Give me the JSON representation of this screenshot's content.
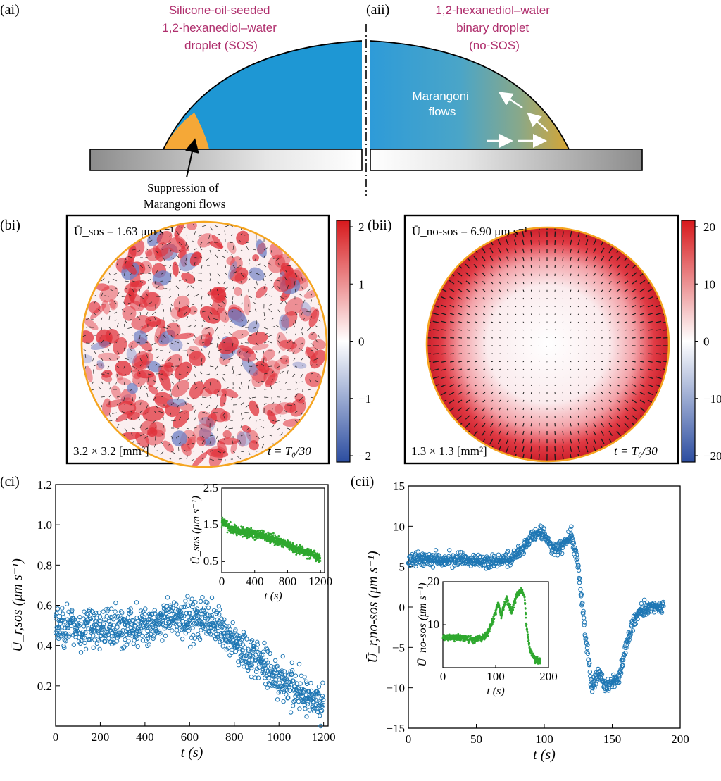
{
  "panel_a": {
    "label_ai": "(ai)",
    "label_aii": "(aii)",
    "sos_title": [
      "Silicone-oil-seeded",
      "1,2-hexanediol–water",
      "droplet (SOS)"
    ],
    "nosos_title": [
      "1,2-hexanediol–water",
      "binary droplet",
      "(no-SOS)"
    ],
    "marangoni_label": [
      "Marangoni",
      "flows"
    ],
    "suppression_label": [
      "Suppression of",
      "Marangoni flows"
    ]
  },
  "panel_b": {
    "label_bi": "(bi)",
    "label_bii": "(bii)",
    "sos_speed": "Ū_sos = 1.63 μm s⁻¹",
    "nosos_speed": "Ū_no-sos = 6.90 μm s⁻¹",
    "sos_scale": "3.2 × 3.2 [mm²]",
    "nosos_scale": "1.3 × 1.3 [mm²]",
    "time_label": "t = T₀/30",
    "colorbar_left_ticks": [
      "2",
      "1",
      "0",
      "−1",
      "−2"
    ],
    "colorbar_right_ticks": [
      "20",
      "10",
      "0",
      "−10",
      "−20"
    ]
  },
  "chart_data": [
    {
      "id": "ci",
      "type": "scatter",
      "label": "(ci)",
      "xlabel": "t (s)",
      "ylabel": "Ū_r,sos (μm s⁻¹)",
      "xlim": [
        0,
        1220
      ],
      "ylim": [
        0,
        1.2
      ],
      "xticks": [
        "0",
        "200",
        "400",
        "600",
        "800",
        "1000",
        "1200"
      ],
      "yticks": [
        "0.2",
        "0.4",
        "0.6",
        "0.8",
        "1.0",
        "1.2"
      ],
      "trend": {
        "x": [
          0,
          200,
          400,
          600,
          700,
          800,
          900,
          1000,
          1100,
          1200
        ],
        "y": [
          0.5,
          0.48,
          0.5,
          0.54,
          0.52,
          0.42,
          0.33,
          0.24,
          0.17,
          0.1
        ]
      },
      "inset": {
        "xlabel": "t (s)",
        "ylabel": "Ū_sos (μm s⁻¹)",
        "xlim": [
          0,
          1250
        ],
        "ylim": [
          0.2,
          2.5
        ],
        "xticks": [
          "0",
          "400",
          "800",
          "1200"
        ],
        "yticks": [
          "0.5",
          "1.5",
          "2.5"
        ],
        "trend": {
          "x": [
            0,
            100,
            300,
            500,
            700,
            900,
            1100,
            1200
          ],
          "y": [
            1.6,
            1.4,
            1.3,
            1.2,
            1.05,
            0.85,
            0.7,
            0.6
          ]
        }
      }
    },
    {
      "id": "cii",
      "type": "scatter",
      "label": "(cii)",
      "xlabel": "t (s)",
      "ylabel": "Ū_r,no-sos (μm s⁻¹)",
      "xlim": [
        0,
        200
      ],
      "ylim": [
        -15,
        15
      ],
      "xticks": [
        "0",
        "50",
        "100",
        "150",
        "200"
      ],
      "yticks": [
        "−15",
        "−10",
        "−5",
        "0",
        "5",
        "10",
        "15"
      ],
      "trend": {
        "x": [
          0,
          20,
          40,
          60,
          75,
          85,
          95,
          100,
          105,
          110,
          115,
          120,
          125,
          130,
          135,
          140,
          145,
          150,
          155,
          160,
          165,
          170,
          175,
          180,
          188
        ],
        "y": [
          6,
          6,
          5.8,
          5.5,
          6,
          7.5,
          9.5,
          9,
          7.5,
          7,
          8,
          9,
          5,
          -3,
          -10,
          -8,
          -10,
          -9,
          -9,
          -5,
          -2,
          -0.5,
          0,
          0,
          0
        ]
      },
      "inset": {
        "xlabel": "t (s)",
        "ylabel": "Ū_no-sos (μm s⁻¹)",
        "xlim": [
          0,
          200
        ],
        "ylim": [
          0,
          20
        ],
        "xticks": [
          "0",
          "100",
          "200"
        ],
        "yticks": [
          "10",
          "20"
        ],
        "trend": {
          "x": [
            0,
            30,
            60,
            75,
            85,
            95,
            105,
            110,
            120,
            130,
            140,
            150,
            155,
            158,
            165,
            175,
            185
          ],
          "y": [
            7,
            7,
            6.5,
            7,
            8,
            11,
            15,
            12,
            16,
            13,
            17,
            18,
            16,
            10,
            4,
            2,
            1.5
          ]
        }
      }
    }
  ]
}
